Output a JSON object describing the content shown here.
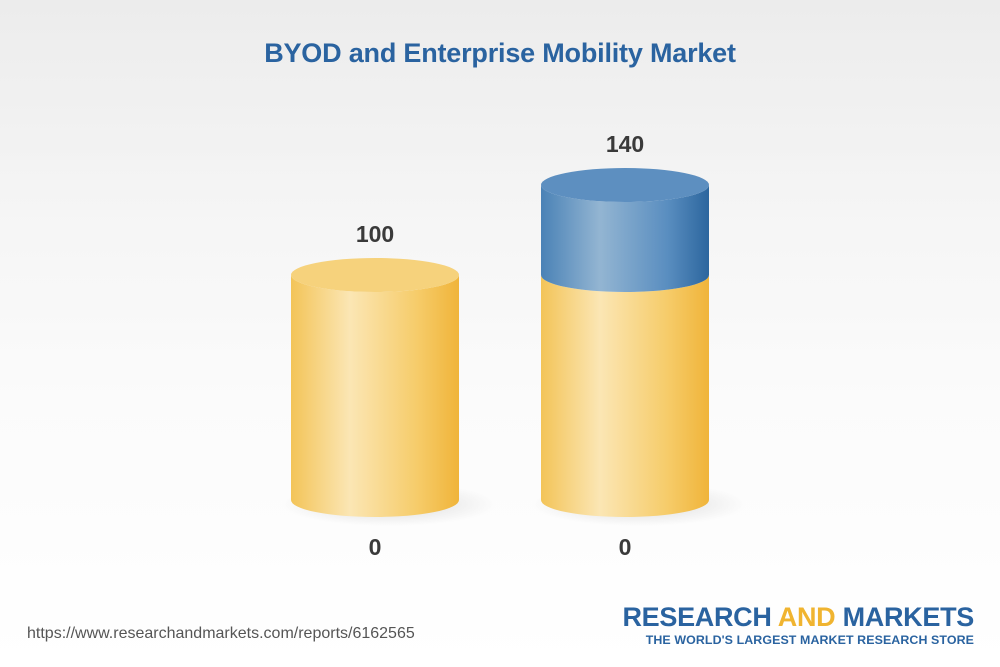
{
  "title": "BYOD and Enterprise Mobility Market",
  "chart_data": {
    "type": "bar",
    "style": "3d-cylinder-stacked",
    "title": "BYOD and Enterprise Mobility Market",
    "xlabel": "",
    "ylabel": "",
    "ylim": [
      0,
      140
    ],
    "grid": false,
    "legend": "none",
    "categories": [
      "",
      ""
    ],
    "bars": [
      {
        "total": 100,
        "base_label": "0",
        "segments": [
          100
        ]
      },
      {
        "total": 140,
        "base_label": "0",
        "segments": [
          100,
          40
        ]
      }
    ],
    "colors": {
      "base": "#f1be4c",
      "base_top": "#f6d27c",
      "growth": "#3e78ad",
      "growth_top": "#5d8fc0"
    }
  },
  "footer": {
    "source_url": "https://www.researchandmarkets.com/reports/6162565",
    "brand_word1": "RESEARCH",
    "brand_word2": "AND",
    "brand_word3": "MARKETS",
    "brand_tagline": "THE WORLD'S LARGEST MARKET RESEARCH STORE"
  },
  "colors": {
    "title": "#2a63a0",
    "brand_blue": "#2a63a0",
    "brand_gold": "#f0b430"
  }
}
